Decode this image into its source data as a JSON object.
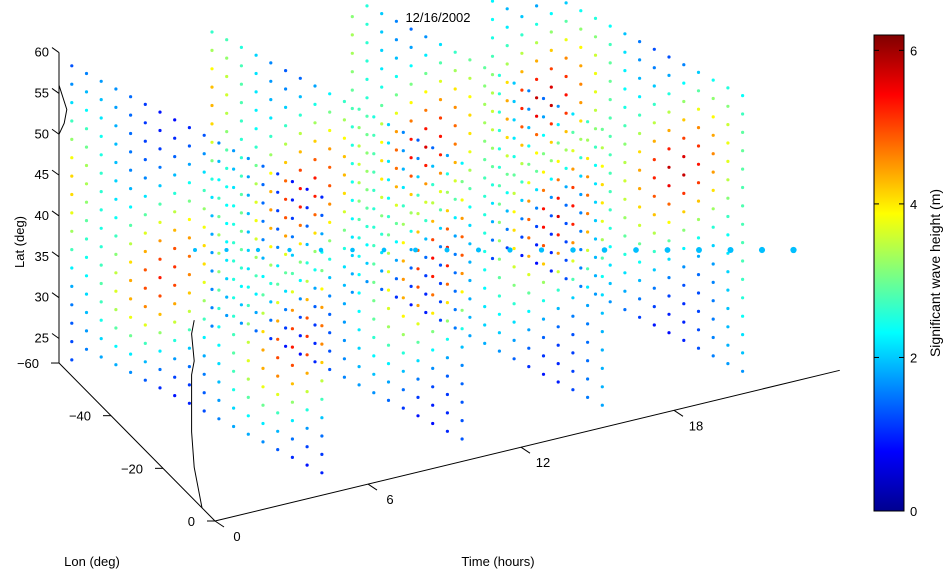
{
  "chart_data": {
    "type": "scatter",
    "title": "12/16/2002",
    "projection": "3d",
    "x_axis": {
      "label": "Time (hours)",
      "ticks": [
        0,
        6,
        12,
        18
      ]
    },
    "y_axis": {
      "label": "Lon (deg)",
      "ticks": [
        -60,
        -40,
        -20,
        0
      ]
    },
    "z_axis": {
      "label": "Lat (deg)",
      "ticks": [
        25,
        30,
        35,
        40,
        45,
        50,
        55,
        60
      ],
      "range": [
        22,
        60
      ]
    },
    "colorbar": {
      "label": "Significant wave height (m)",
      "range": [
        0,
        6.2
      ],
      "ticks": [
        0,
        2,
        4,
        6
      ],
      "colormap": "jet"
    },
    "grid": false,
    "marker_color": "#00bfff",
    "marker_row": {
      "lat": 35.5,
      "times": [
        0,
        1.2,
        2.4,
        3.6,
        4.8,
        6.0,
        7.2,
        8.4,
        9.6,
        10.8,
        12.0,
        13.2,
        14.4,
        15.6,
        16.8,
        18.0,
        19.2,
        20.4,
        21.6,
        22.8
      ]
    },
    "series": [
      {
        "time": 0.5,
        "lon_range": [
          -5,
          -60
        ],
        "lat_range": [
          22,
          58
        ],
        "tracks": 17,
        "swh_profile": [
          1.5,
          1.7,
          2.0,
          2.4,
          2.8,
          3.4,
          3.9,
          4.3,
          4.5,
          4.6,
          4.4,
          4.0,
          3.3,
          2.6,
          2.0,
          1.6,
          1.4
        ]
      },
      {
        "time": 6.0,
        "lon_range": [
          -5,
          -60
        ],
        "lat_range": [
          22,
          58
        ],
        "tracks": 17,
        "swh_profile": [
          2.4,
          2.9,
          3.4,
          3.9,
          4.3,
          4.6,
          4.7,
          4.6,
          4.3,
          3.9,
          3.4,
          2.9,
          2.4,
          2.0,
          1.7,
          1.5,
          1.4
        ]
      },
      {
        "time": 11.5,
        "lon_range": [
          -5,
          -60
        ],
        "lat_range": [
          22,
          58
        ],
        "tracks": 17,
        "swh_profile": [
          2.6,
          3.0,
          3.5,
          4.0,
          4.4,
          4.7,
          4.9,
          4.7,
          4.3,
          3.8,
          3.2,
          2.7,
          2.3,
          2.0,
          1.8,
          1.6,
          1.5
        ]
      },
      {
        "time": 17.0,
        "lon_range": [
          -5,
          -60
        ],
        "lat_range": [
          22,
          58
        ],
        "tracks": 17,
        "swh_profile": [
          2.2,
          2.8,
          3.4,
          4.0,
          4.5,
          4.9,
          5.1,
          4.8,
          4.3,
          3.7,
          3.1,
          2.6,
          2.2,
          1.9,
          1.7,
          1.5,
          1.4
        ]
      }
    ]
  }
}
